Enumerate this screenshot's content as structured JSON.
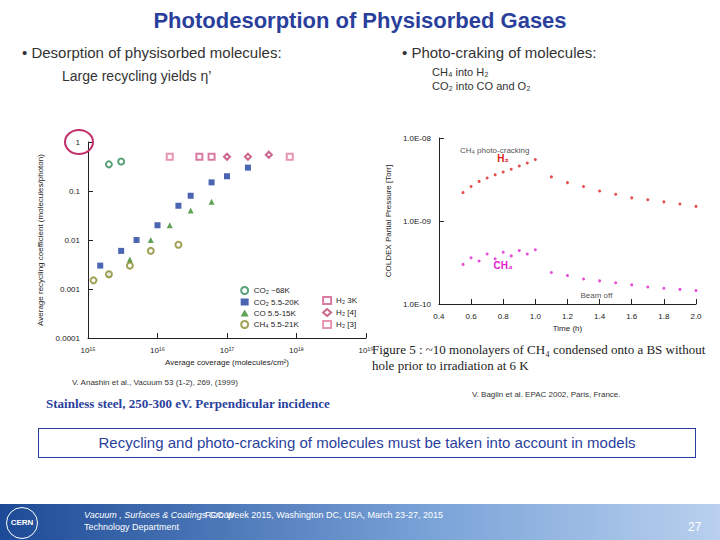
{
  "slide": {
    "title": "Photodesorption of Physisorbed Gases",
    "left_heading": "• Desorption of physisorbed molecules:",
    "left_subheading": "Large recycling yields η’",
    "right_heading": "• Photo-craking of molecules:",
    "right_lines": [
      "CH₄ into H₂",
      "CO₂ into CO and O₂"
    ],
    "left_citation": "V. Anashin et al., Vacuum 53 (1-2), 269, (1999)",
    "left_note": "Stainless steel, 250-300 eV. Perpendicular incidence",
    "right_caption": "Figure 5 : ~10 monolayers of CH₄ condensed onto a BS without hole prior to irradiation at 6 K",
    "right_citation": "V. Baglin et al. EPAC 2002, Paris, France.",
    "conclusion": "Recycling and photo-cracking of molecules must be taken into account in models",
    "footer": {
      "logo": "CERN",
      "group": "Vacuum , Surfaces & Coatings Group",
      "department": "Technology Department",
      "event": "FCC Week 2015, Washington DC, USA, March 23-27, 2015",
      "page": "27"
    }
  },
  "chart_data": [
    {
      "type": "scatter",
      "log": true,
      "grid": false,
      "legend": "lower right",
      "x_label": "Average coverage (molecules/cm²)",
      "y_label": "Average recycling coefficient (molecules/photon)",
      "xlim": [
        1000000000000000.0,
        1e+19
      ],
      "xticks": [
        {
          "value": 1000000000000000.0,
          "label": "10¹⁵"
        },
        {
          "value": 1e+16,
          "label": "10¹⁶"
        },
        {
          "value": 1e+17,
          "label": "10¹⁷"
        },
        {
          "value": 1e+18,
          "label": "10¹⁸"
        },
        {
          "value": 1e+19,
          "label": "10¹⁹"
        }
      ],
      "ylim": [
        0.0001,
        1
      ],
      "yticks": [
        0.0001,
        0.001,
        0.01,
        0.1,
        1
      ],
      "series": [
        {
          "name": "CO₂ ~68K",
          "color": "#2e8b57",
          "marker": "open_circle",
          "x": [
            2000000000000000.0,
            3000000000000000.0
          ],
          "values": [
            0.35,
            0.4
          ]
        },
        {
          "name": "CO₂ 5.5-20K",
          "color": "#1f3f9f",
          "marker": "square",
          "x": [
            1500000000000000.0,
            3000000000000000.0,
            5000000000000000.0,
            1e+16,
            2e+16,
            3e+16,
            6e+16,
            1e+17,
            2e+17
          ],
          "values": [
            0.003,
            0.006,
            0.01,
            0.02,
            0.05,
            0.08,
            0.15,
            0.2,
            0.3
          ]
        },
        {
          "name": "CO 5.5-15K",
          "color": "#3a8a2a",
          "marker": "triangle",
          "x": [
            2000000000000000.0,
            4000000000000000.0,
            8000000000000000.0,
            1.5e+16,
            3e+16,
            6e+16
          ],
          "values": [
            0.002,
            0.004,
            0.01,
            0.02,
            0.04,
            0.06
          ]
        },
        {
          "name": "CH₄ 5.5-21K",
          "color": "#8a8a2a",
          "marker": "open_circle",
          "x": [
            1200000000000000.0,
            2000000000000000.0,
            4000000000000000.0,
            8000000000000000.0,
            2e+16
          ],
          "values": [
            0.0015,
            0.002,
            0.003,
            0.006,
            0.008
          ]
        },
        {
          "name": "H₂ 3K",
          "color": "#d05a8a",
          "marker": "open_square",
          "x": [
            4e+16,
            6e+16
          ],
          "values": [
            0.5,
            0.5
          ]
        },
        {
          "name": "H₂ [4]",
          "color": "#c04070",
          "marker": "open_diamond",
          "x": [
            1e+17,
            2e+17,
            4e+17
          ],
          "values": [
            0.5,
            0.5,
            0.55
          ]
        },
        {
          "name": "H₂ [3]",
          "color": "#e07aa0",
          "marker": "open_square",
          "x": [
            1.5e+16,
            8e+17
          ],
          "values": [
            0.5,
            0.5
          ]
        }
      ]
    },
    {
      "type": "scatter",
      "log": "y",
      "grid": false,
      "x_label": "Time (h)",
      "y_label": "COLDEX Partial Pressure [Torr]",
      "xlim": [
        0.4,
        2
      ],
      "xticks": [
        0.4,
        0.6,
        0.8,
        {
          "value": 1,
          "label": "1.0"
        },
        1.2,
        1.4,
        1.6,
        1.8,
        {
          "value": 2,
          "label": "2.0"
        }
      ],
      "ylim": [
        1e-10,
        1e-08
      ],
      "yticks": [
        {
          "value": 1e-10,
          "label": "1.0E-10"
        },
        {
          "value": 1e-09,
          "label": "1.0E-09"
        },
        {
          "value": 1e-08,
          "label": "1.0E-08"
        }
      ],
      "annotations": [
        {
          "text": "CH₄ photo-cracking",
          "x": 0.5,
          "y": 7e-09
        },
        {
          "text": "Beam off",
          "x": 1.25,
          "y": 1.25e-10
        }
      ],
      "series": [
        {
          "name": "H₂",
          "color": "#e02020",
          "marker": "circle",
          "x": [
            0.55,
            0.6,
            0.65,
            0.7,
            0.75,
            0.8,
            0.85,
            0.9,
            0.95,
            1.0,
            1.1,
            1.2,
            1.3,
            1.4,
            1.5,
            1.6,
            1.7,
            1.8,
            1.9,
            2.0
          ],
          "values": [
            2.2e-09,
            2.6e-09,
            3e-09,
            3.3e-09,
            3.6e-09,
            3.9e-09,
            4.2e-09,
            4.6e-09,
            5e-09,
            5.5e-09,
            3.4e-09,
            2.9e-09,
            2.6e-09,
            2.3e-09,
            2.1e-09,
            1.9e-09,
            1.8e-09,
            1.7e-09,
            1.6e-09,
            1.5e-09
          ]
        },
        {
          "name": "CH₄",
          "color": "#e020d0",
          "marker": "circle",
          "x": [
            0.55,
            0.6,
            0.65,
            0.7,
            0.75,
            0.8,
            0.85,
            0.9,
            0.95,
            1.0,
            1.1,
            1.2,
            1.3,
            1.4,
            1.5,
            1.6,
            1.7,
            1.8,
            1.9,
            2.0
          ],
          "values": [
            3e-10,
            3.6e-10,
            3.3e-10,
            4e-10,
            3.5e-10,
            4.2e-10,
            3.8e-10,
            4.4e-10,
            4e-10,
            4.5e-10,
            2.4e-10,
            2.2e-10,
            2e-10,
            1.9e-10,
            1.8e-10,
            1.7e-10,
            1.6e-10,
            1.55e-10,
            1.5e-10,
            1.45e-10
          ]
        }
      ]
    }
  ]
}
